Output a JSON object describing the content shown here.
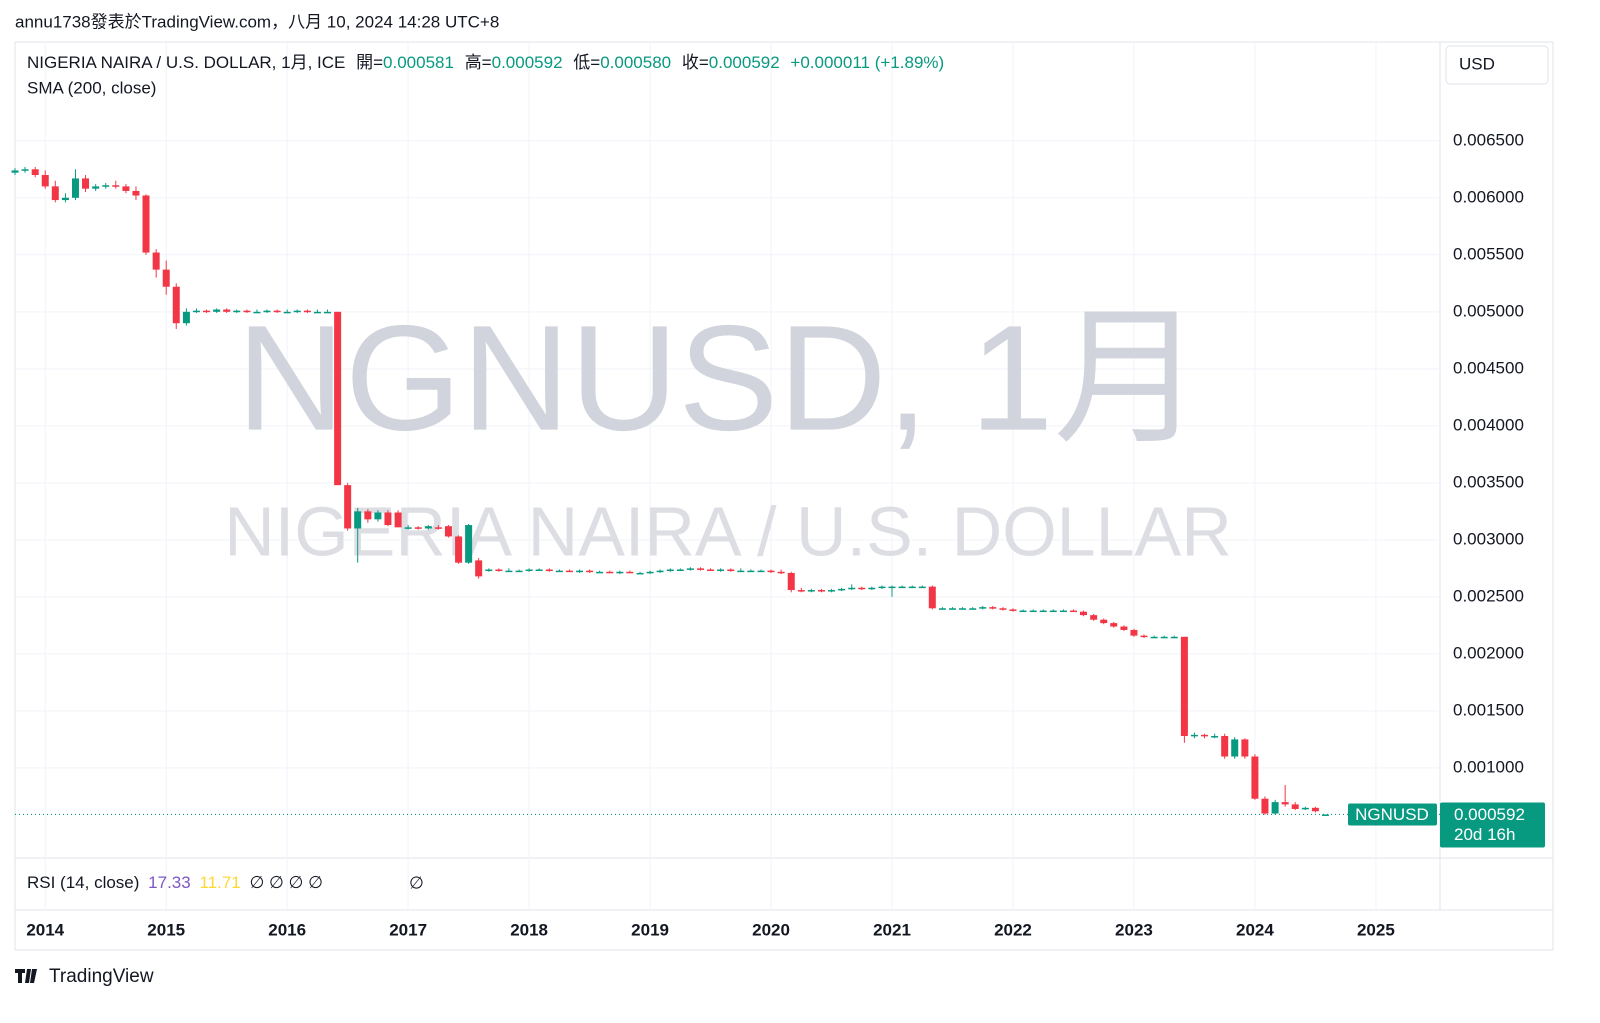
{
  "header": "annu1738發表於TradingView.com，八月 10, 2024 14:28 UTC+8",
  "legend": {
    "symbol": "NIGERIA NAIRA / U.S. DOLLAR, 1月, ICE",
    "open_label": "開=",
    "open": "0.000581",
    "high_label": "高=",
    "high": "0.000592",
    "low_label": "低=",
    "low": "0.000580",
    "close_label": "收=",
    "close": "0.000592",
    "change": "+0.000011 (+1.89%)",
    "indicator": "SMA (200, close)"
  },
  "currency": "USD",
  "watermark": {
    "main": "NGNUSD, 1月",
    "sub": "NIGERIA NAIRA / U.S. DOLLAR"
  },
  "price_tag": {
    "symbol": "NGNUSD",
    "price": "0.000592",
    "countdown": "20d 16h"
  },
  "rsi": {
    "label": "RSI (14, close)",
    "value1": "17.33",
    "value2": "11.71",
    "empties": "∅ ∅ ∅ ∅",
    "empty": "∅"
  },
  "footer": "TradingView",
  "chart_data": {
    "type": "candlestick",
    "up_color": "#089981",
    "down_color": "#f23645",
    "grid": true,
    "xlim": [
      2013.75,
      2025.53
    ],
    "xticks": [
      2014,
      2015,
      2016,
      2017,
      2018,
      2019,
      2020,
      2021,
      2022,
      2023,
      2024,
      2025
    ],
    "ylim": [
      0.00021,
      0.00734
    ],
    "yticks": [
      {
        "value": 0.0065,
        "label": "0.006500"
      },
      {
        "value": 0.006,
        "label": "0.006000"
      },
      {
        "value": 0.0055,
        "label": "0.005500"
      },
      {
        "value": 0.005,
        "label": "0.005000"
      },
      {
        "value": 0.0045,
        "label": "0.004500"
      },
      {
        "value": 0.004,
        "label": "0.004000"
      },
      {
        "value": 0.0035,
        "label": "0.003500"
      },
      {
        "value": 0.003,
        "label": "0.003000"
      },
      {
        "value": 0.0025,
        "label": "0.002500"
      },
      {
        "value": 0.002,
        "label": "0.002000"
      },
      {
        "value": 0.0015,
        "label": "0.001500"
      },
      {
        "value": 0.001,
        "label": "0.001000"
      }
    ],
    "x": [
      2013.75,
      2013.833,
      2013.917,
      2014,
      2014.083,
      2014.167,
      2014.25,
      2014.333,
      2014.417,
      2014.5,
      2014.583,
      2014.667,
      2014.75,
      2014.833,
      2014.917,
      2015,
      2015.083,
      2015.167,
      2015.25,
      2015.333,
      2015.417,
      2015.5,
      2015.583,
      2015.667,
      2015.75,
      2015.833,
      2015.917,
      2016,
      2016.083,
      2016.167,
      2016.25,
      2016.333,
      2016.417,
      2016.5,
      2016.583,
      2016.667,
      2016.75,
      2016.833,
      2016.917,
      2017,
      2017.083,
      2017.167,
      2017.25,
      2017.333,
      2017.417,
      2017.5,
      2017.583,
      2017.667,
      2017.75,
      2017.833,
      2017.917,
      2018,
      2018.083,
      2018.167,
      2018.25,
      2018.333,
      2018.417,
      2018.5,
      2018.583,
      2018.667,
      2018.75,
      2018.833,
      2018.917,
      2019,
      2019.083,
      2019.167,
      2019.25,
      2019.333,
      2019.417,
      2019.5,
      2019.583,
      2019.667,
      2019.75,
      2019.833,
      2019.917,
      2020,
      2020.083,
      2020.167,
      2020.25,
      2020.333,
      2020.417,
      2020.5,
      2020.583,
      2020.667,
      2020.75,
      2020.833,
      2020.917,
      2021,
      2021.083,
      2021.167,
      2021.25,
      2021.333,
      2021.417,
      2021.5,
      2021.583,
      2021.667,
      2021.75,
      2021.833,
      2021.917,
      2022,
      2022.083,
      2022.167,
      2022.25,
      2022.333,
      2022.417,
      2022.5,
      2022.583,
      2022.667,
      2022.75,
      2022.833,
      2022.917,
      2023,
      2023.083,
      2023.167,
      2023.25,
      2023.333,
      2023.417,
      2023.5,
      2023.583,
      2023.667,
      2023.75,
      2023.833,
      2023.917,
      2024,
      2024.083,
      2024.167,
      2024.25,
      2024.333,
      2024.417,
      2024.5,
      2024.583
    ],
    "ohlc": [
      [
        0.00622,
        0.00626,
        0.0062,
        0.00624
      ],
      [
        0.00624,
        0.00627,
        0.00622,
        0.00625
      ],
      [
        0.00625,
        0.00627,
        0.00618,
        0.0062
      ],
      [
        0.0062,
        0.00624,
        0.00608,
        0.0061
      ],
      [
        0.0061,
        0.00615,
        0.00596,
        0.00598
      ],
      [
        0.00598,
        0.00604,
        0.00596,
        0.006
      ],
      [
        0.006,
        0.00625,
        0.00598,
        0.00617
      ],
      [
        0.00617,
        0.0062,
        0.00605,
        0.00608
      ],
      [
        0.00608,
        0.00612,
        0.00606,
        0.0061
      ],
      [
        0.0061,
        0.00613,
        0.00608,
        0.00611
      ],
      [
        0.00611,
        0.00615,
        0.00608,
        0.0061
      ],
      [
        0.0061,
        0.00612,
        0.00604,
        0.00606
      ],
      [
        0.00606,
        0.0061,
        0.00598,
        0.00602
      ],
      [
        0.00602,
        0.00603,
        0.0055,
        0.00552
      ],
      [
        0.00552,
        0.00555,
        0.0053,
        0.00537
      ],
      [
        0.00537,
        0.00545,
        0.00515,
        0.00522
      ],
      [
        0.00522,
        0.00525,
        0.00485,
        0.0049
      ],
      [
        0.0049,
        0.00503,
        0.00488,
        0.005
      ],
      [
        0.005,
        0.00503,
        0.00499,
        0.00501
      ],
      [
        0.00501,
        0.00502,
        0.00499,
        0.005
      ],
      [
        0.005,
        0.00503,
        0.00499,
        0.00502
      ],
      [
        0.00502,
        0.00503,
        0.00499,
        0.005
      ],
      [
        0.005,
        0.00502,
        0.00499,
        0.00501
      ],
      [
        0.00501,
        0.00502,
        0.00499,
        0.005
      ],
      [
        0.005,
        0.00502,
        0.00499,
        0.005
      ],
      [
        0.005,
        0.00502,
        0.00499,
        0.00501
      ],
      [
        0.00501,
        0.00502,
        0.00499,
        0.005
      ],
      [
        0.005,
        0.00502,
        0.00499,
        0.005
      ],
      [
        0.005,
        0.00502,
        0.00499,
        0.00501
      ],
      [
        0.00501,
        0.00502,
        0.00499,
        0.005
      ],
      [
        0.005,
        0.00502,
        0.00499,
        0.005
      ],
      [
        0.005,
        0.00502,
        0.00499,
        0.005
      ],
      [
        0.005,
        0.005,
        0.00348,
        0.00348
      ],
      [
        0.00348,
        0.0035,
        0.00308,
        0.0031
      ],
      [
        0.0031,
        0.00328,
        0.0028,
        0.00325
      ],
      [
        0.00325,
        0.00327,
        0.00315,
        0.00318
      ],
      [
        0.00318,
        0.00326,
        0.00316,
        0.00324
      ],
      [
        0.00324,
        0.00326,
        0.00312,
        0.00313
      ],
      [
        0.00324,
        0.00326,
        0.00311,
        0.00311
      ],
      [
        0.00311,
        0.00313,
        0.00309,
        0.00311
      ],
      [
        0.00311,
        0.00312,
        0.00309,
        0.0031
      ],
      [
        0.0031,
        0.00313,
        0.00309,
        0.00312
      ],
      [
        0.00311,
        0.00313,
        0.00309,
        0.0031
      ],
      [
        0.00312,
        0.00313,
        0.00302,
        0.00303
      ],
      [
        0.00303,
        0.00304,
        0.00279,
        0.0028
      ],
      [
        0.0028,
        0.00314,
        0.00279,
        0.00313
      ],
      [
        0.00282,
        0.00284,
        0.00266,
        0.00268
      ],
      [
        0.00273,
        0.00275,
        0.00272,
        0.00274
      ],
      [
        0.00274,
        0.00275,
        0.00272,
        0.00273
      ],
      [
        0.00273,
        0.00275,
        0.00272,
        0.00273
      ],
      [
        0.00273,
        0.00274,
        0.00272,
        0.00273
      ],
      [
        0.00273,
        0.00275,
        0.00272,
        0.00274
      ],
      [
        0.00274,
        0.00275,
        0.00273,
        0.00274
      ],
      [
        0.00274,
        0.00275,
        0.00272,
        0.00273
      ],
      [
        0.00273,
        0.00274,
        0.00272,
        0.00273
      ],
      [
        0.00273,
        0.00274,
        0.00272,
        0.00272
      ],
      [
        0.00272,
        0.00274,
        0.00271,
        0.00273
      ],
      [
        0.00273,
        0.00274,
        0.00271,
        0.00272
      ],
      [
        0.00272,
        0.00273,
        0.00271,
        0.00272
      ],
      [
        0.00272,
        0.00273,
        0.00271,
        0.00271
      ],
      [
        0.00271,
        0.00273,
        0.0027,
        0.00272
      ],
      [
        0.00272,
        0.00273,
        0.00271,
        0.00271
      ],
      [
        0.00271,
        0.00272,
        0.0027,
        0.00271
      ],
      [
        0.00271,
        0.00273,
        0.0027,
        0.00272
      ],
      [
        0.00272,
        0.00274,
        0.00271,
        0.00273
      ],
      [
        0.00273,
        0.00275,
        0.00272,
        0.00274
      ],
      [
        0.00274,
        0.00275,
        0.00273,
        0.00274
      ],
      [
        0.00274,
        0.00276,
        0.00273,
        0.00275
      ],
      [
        0.00275,
        0.00276,
        0.00273,
        0.00274
      ],
      [
        0.00274,
        0.00275,
        0.00273,
        0.00273
      ],
      [
        0.00273,
        0.00275,
        0.00272,
        0.00274
      ],
      [
        0.00274,
        0.00275,
        0.00272,
        0.00273
      ],
      [
        0.00273,
        0.00275,
        0.00272,
        0.00273
      ],
      [
        0.00273,
        0.00274,
        0.00272,
        0.00273
      ],
      [
        0.00273,
        0.00274,
        0.00272,
        0.00273
      ],
      [
        0.00273,
        0.00274,
        0.00271,
        0.00272
      ],
      [
        0.00272,
        0.00274,
        0.0027,
        0.00271
      ],
      [
        0.00271,
        0.00272,
        0.00254,
        0.00256
      ],
      [
        0.00256,
        0.00258,
        0.00254,
        0.00255
      ],
      [
        0.00255,
        0.00257,
        0.00254,
        0.00256
      ],
      [
        0.00256,
        0.00257,
        0.00254,
        0.00255
      ],
      [
        0.00255,
        0.00257,
        0.00254,
        0.00256
      ],
      [
        0.00256,
        0.00258,
        0.00255,
        0.00257
      ],
      [
        0.00257,
        0.00261,
        0.00256,
        0.00258
      ],
      [
        0.00258,
        0.00259,
        0.00256,
        0.00257
      ],
      [
        0.00257,
        0.00259,
        0.00256,
        0.00258
      ],
      [
        0.00258,
        0.0026,
        0.00257,
        0.00259
      ],
      [
        0.00259,
        0.0026,
        0.0025,
        0.00259
      ],
      [
        0.00259,
        0.0026,
        0.00258,
        0.00259
      ],
      [
        0.00259,
        0.0026,
        0.00258,
        0.00259
      ],
      [
        0.00259,
        0.0026,
        0.00258,
        0.00259
      ],
      [
        0.00259,
        0.0026,
        0.00239,
        0.0024
      ],
      [
        0.0024,
        0.00241,
        0.00239,
        0.0024
      ],
      [
        0.0024,
        0.00241,
        0.00239,
        0.0024
      ],
      [
        0.0024,
        0.00241,
        0.00239,
        0.0024
      ],
      [
        0.0024,
        0.00241,
        0.00239,
        0.0024
      ],
      [
        0.0024,
        0.00242,
        0.00239,
        0.00241
      ],
      [
        0.00241,
        0.00242,
        0.00239,
        0.0024
      ],
      [
        0.0024,
        0.00241,
        0.00238,
        0.00239
      ],
      [
        0.00239,
        0.0024,
        0.00237,
        0.00238
      ],
      [
        0.00238,
        0.00239,
        0.00237,
        0.00238
      ],
      [
        0.00238,
        0.00239,
        0.00237,
        0.00238
      ],
      [
        0.00238,
        0.00239,
        0.00237,
        0.00238
      ],
      [
        0.00238,
        0.00239,
        0.00237,
        0.00238
      ],
      [
        0.00238,
        0.00239,
        0.00237,
        0.00238
      ],
      [
        0.00238,
        0.00239,
        0.00237,
        0.00237
      ],
      [
        0.00237,
        0.00238,
        0.00233,
        0.00234
      ],
      [
        0.00234,
        0.00235,
        0.00229,
        0.0023
      ],
      [
        0.0023,
        0.00231,
        0.00226,
        0.00227
      ],
      [
        0.00227,
        0.00228,
        0.00223,
        0.00224
      ],
      [
        0.00224,
        0.00225,
        0.0022,
        0.00221
      ],
      [
        0.00221,
        0.00222,
        0.00215,
        0.00216
      ],
      [
        0.00216,
        0.00217,
        0.00214,
        0.00215
      ],
      [
        0.00215,
        0.00216,
        0.00214,
        0.00215
      ],
      [
        0.00215,
        0.00216,
        0.00214,
        0.00215
      ],
      [
        0.00215,
        0.00216,
        0.00214,
        0.00215
      ],
      [
        0.00215,
        0.00215,
        0.00122,
        0.00128
      ],
      [
        0.00128,
        0.00131,
        0.00126,
        0.00129
      ],
      [
        0.00129,
        0.0013,
        0.00126,
        0.00128
      ],
      [
        0.00128,
        0.0013,
        0.00126,
        0.00128
      ],
      [
        0.00128,
        0.0013,
        0.00108,
        0.0011
      ],
      [
        0.0011,
        0.00127,
        0.00108,
        0.00125
      ],
      [
        0.00125,
        0.00126,
        0.00108,
        0.0011
      ],
      [
        0.0011,
        0.00112,
        0.00072,
        0.00073
      ],
      [
        0.00073,
        0.00075,
        0.00059,
        0.0006
      ],
      [
        0.0006,
        0.00072,
        0.00059,
        0.0007
      ],
      [
        0.0007,
        0.00085,
        0.00066,
        0.00068
      ],
      [
        0.00068,
        0.0007,
        0.00063,
        0.00064
      ],
      [
        0.00064,
        0.00066,
        0.00063,
        0.00065
      ],
      [
        0.00065,
        0.00066,
        0.00061,
        0.00062
      ],
      [
        0.000581,
        0.000592,
        0.00058,
        0.000592
      ]
    ]
  }
}
